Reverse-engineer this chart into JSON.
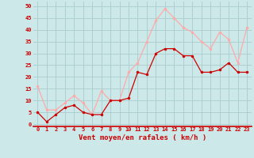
{
  "x": [
    0,
    1,
    2,
    3,
    4,
    5,
    6,
    7,
    8,
    9,
    10,
    11,
    12,
    13,
    14,
    15,
    16,
    17,
    18,
    19,
    20,
    21,
    22,
    23
  ],
  "wind_avg": [
    5,
    1,
    4,
    7,
    8,
    5,
    4,
    4,
    10,
    10,
    11,
    22,
    21,
    30,
    32,
    32,
    29,
    29,
    22,
    22,
    23,
    26,
    22,
    22
  ],
  "wind_gust": [
    16,
    6,
    6,
    9,
    12,
    9,
    4,
    14,
    10,
    10,
    22,
    26,
    35,
    44,
    49,
    45,
    41,
    39,
    35,
    32,
    39,
    36,
    26,
    41
  ],
  "avg_color": "#cc0000",
  "gust_color": "#ffaaaa",
  "bg_color": "#cce8e8",
  "grid_color": "#aacccc",
  "tick_color": "#cc0000",
  "xlabel": "Vent moyen/en rafales ( km/h )",
  "xlabel_color": "#cc0000",
  "ytick_labels": [
    "0",
    "5",
    "10",
    "15",
    "20",
    "25",
    "30",
    "35",
    "40",
    "45",
    "50"
  ],
  "ytick_values": [
    0,
    5,
    10,
    15,
    20,
    25,
    30,
    35,
    40,
    45,
    50
  ],
  "ylim": [
    -1,
    52
  ],
  "xlim": [
    -0.5,
    23.5
  ]
}
